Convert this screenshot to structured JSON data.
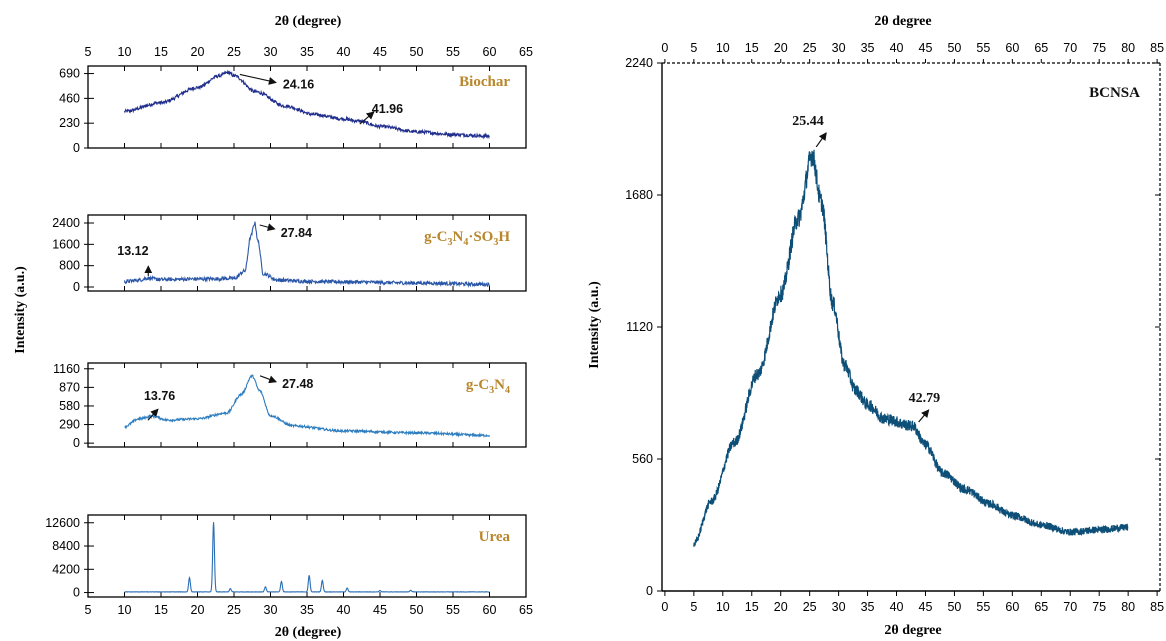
{
  "colors": {
    "label_gold": "#b8862b",
    "biochar_line": "#1f2d8c",
    "sulfonated_line": "#2a56a8",
    "gcn_line": "#2e7dbf",
    "urea_line": "#2b6fb5",
    "bcnsa_line": "#0e4f78",
    "axis": "#000000"
  },
  "chart_data": [
    {
      "type": "line",
      "panel": "Biochar",
      "label": "Biochar",
      "top_axis_title": "2θ (degree)",
      "xlim": [
        5,
        65
      ],
      "xticks": [
        5,
        10,
        15,
        20,
        25,
        30,
        35,
        40,
        45,
        50,
        55,
        60,
        65
      ],
      "ylim": [
        0,
        760
      ],
      "yticks": [
        0,
        230,
        460,
        690
      ],
      "series": [
        {
          "x": [
            10,
            15,
            20,
            23,
            24.16,
            25,
            28,
            32,
            36,
            40,
            41.96,
            45,
            50,
            55,
            60
          ],
          "values": [
            340,
            420,
            560,
            670,
            700,
            670,
            520,
            390,
            310,
            270,
            250,
            200,
            150,
            125,
            110
          ]
        }
      ],
      "annotations": [
        {
          "text": "24.16",
          "x": 24.16,
          "y": 700
        },
        {
          "text": "41.96",
          "x": 41.96,
          "y": 250
        }
      ]
    },
    {
      "type": "line",
      "panel": "g-C3N4·SO3H",
      "label_parts": [
        "g-C",
        "3",
        "N",
        "4",
        "·SO",
        "3",
        "H"
      ],
      "xlim": [
        5,
        65
      ],
      "ylim": [
        -150,
        2700
      ],
      "yticks": [
        0,
        800,
        1600,
        2400
      ],
      "series": [
        {
          "x": [
            10,
            12,
            13.12,
            15,
            20,
            25,
            26.5,
            27.3,
            27.84,
            28.3,
            29,
            31,
            35,
            40,
            50,
            60
          ],
          "values": [
            200,
            260,
            330,
            280,
            300,
            320,
            600,
            1900,
            2400,
            1700,
            500,
            260,
            210,
            190,
            150,
            100
          ]
        }
      ],
      "annotations": [
        {
          "text": "13.12",
          "x": 13.12,
          "y": 330
        },
        {
          "text": "27.84",
          "x": 27.84,
          "y": 2400
        }
      ]
    },
    {
      "type": "line",
      "panel": "g-C3N4",
      "label_parts": [
        "g-C",
        "3",
        "N",
        "4"
      ],
      "xlim": [
        5,
        65
      ],
      "ylim": [
        -60,
        1250
      ],
      "yticks": [
        0,
        290,
        580,
        870,
        1160
      ],
      "series": [
        {
          "x": [
            10,
            12,
            13.76,
            16,
            20,
            24,
            26,
            27.48,
            28.5,
            30,
            33,
            40,
            50,
            60
          ],
          "values": [
            260,
            380,
            420,
            360,
            380,
            470,
            760,
            1050,
            820,
            430,
            270,
            190,
            160,
            120
          ]
        }
      ],
      "annotations": [
        {
          "text": "13.76",
          "x": 13.76,
          "y": 420
        },
        {
          "text": "27.48",
          "x": 27.48,
          "y": 1050
        }
      ]
    },
    {
      "type": "line",
      "panel": "Urea",
      "label": "Urea",
      "bottom_axis_title": "2θ (degree)",
      "xlim": [
        5,
        65
      ],
      "xticks": [
        5,
        10,
        15,
        20,
        25,
        30,
        35,
        40,
        45,
        50,
        55,
        60,
        65
      ],
      "ylim": [
        -800,
        14000
      ],
      "yticks": [
        0,
        4200,
        8400,
        12600
      ],
      "series": [
        {
          "peaks": [
            {
              "x": 18.9,
              "y": 2600
            },
            {
              "x": 22.2,
              "y": 12600
            },
            {
              "x": 24.5,
              "y": 600
            },
            {
              "x": 29.3,
              "y": 900
            },
            {
              "x": 31.5,
              "y": 1900
            },
            {
              "x": 35.3,
              "y": 3000
            },
            {
              "x": 37.1,
              "y": 2100
            },
            {
              "x": 40.5,
              "y": 700
            },
            {
              "x": 45.0,
              "y": 250
            },
            {
              "x": 49.2,
              "y": 300
            }
          ],
          "baseline": 120
        }
      ]
    },
    {
      "type": "line",
      "panel": "BCNSA",
      "label": "BCNSA",
      "axis_title": "2θ degree",
      "ylabel": "Intensity (a.u.)",
      "xlim": [
        -0.5,
        85.5
      ],
      "xticks": [
        0,
        5,
        10,
        15,
        20,
        25,
        30,
        35,
        40,
        45,
        50,
        55,
        60,
        65,
        70,
        75,
        80,
        85
      ],
      "ylim": [
        0,
        2240
      ],
      "yticks": [
        0,
        560,
        1120,
        1680,
        2240
      ],
      "series": [
        {
          "x": [
            5,
            8,
            12,
            16,
            20,
            23,
            25.44,
            27,
            29,
            31,
            33,
            35,
            38,
            42.79,
            45,
            48,
            52,
            56,
            60,
            65,
            70,
            75,
            80
          ],
          "values": [
            200,
            380,
            630,
            920,
            1260,
            1580,
            1850,
            1650,
            1220,
            960,
            850,
            790,
            730,
            700,
            620,
            500,
            430,
            370,
            320,
            280,
            250,
            260,
            270
          ]
        }
      ],
      "annotations": [
        {
          "text": "25.44",
          "x": 25.44,
          "y": 1850
        },
        {
          "text": "42.79",
          "x": 42.79,
          "y": 700
        }
      ]
    }
  ],
  "left_ylabel": "Intensity (a.u.)"
}
